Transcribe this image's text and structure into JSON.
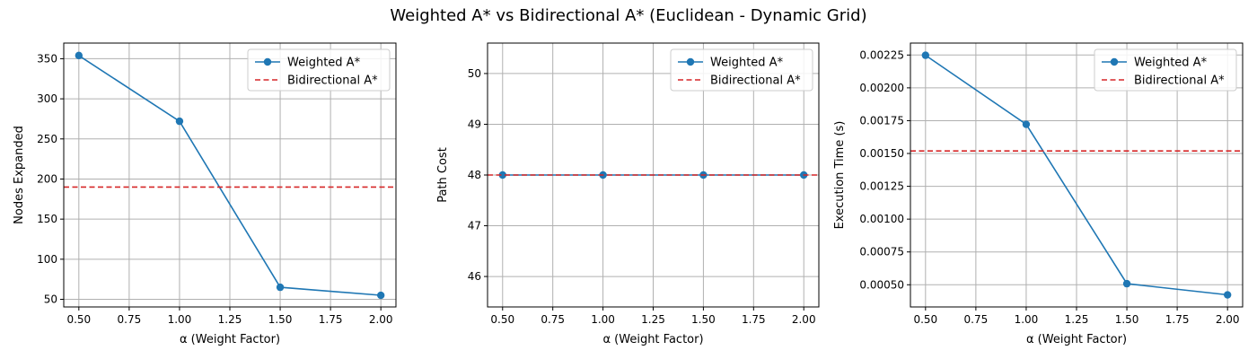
{
  "title": "Weighted A* vs Bidirectional A* (Euclidean - Dynamic Grid)",
  "colors": {
    "weighted": "#1f77b4",
    "bidirectional": "#d62728"
  },
  "chart_data": [
    {
      "type": "line",
      "xlabel": "α (Weight Factor)",
      "ylabel": "Nodes Expanded",
      "x": [
        0.5,
        1.0,
        1.5,
        2.0
      ],
      "xlim": [
        0.425,
        2.075
      ],
      "ylim": [
        40.5,
        369.5
      ],
      "xticks": [
        "0.50",
        "0.75",
        "1.00",
        "1.25",
        "1.50",
        "1.75",
        "2.00"
      ],
      "yticks": [
        "50",
        "100",
        "150",
        "200",
        "250",
        "300",
        "350"
      ],
      "grid": true,
      "legend_position": "top-right",
      "series": [
        {
          "name": "Weighted A*",
          "style": "solid-marker",
          "values": [
            354,
            272,
            65,
            55
          ]
        },
        {
          "name": "Bidirectional A*",
          "style": "dashed-hline",
          "value": 190
        }
      ]
    },
    {
      "type": "line",
      "xlabel": "α (Weight Factor)",
      "ylabel": "Path Cost",
      "x": [
        0.5,
        1.0,
        1.5,
        2.0
      ],
      "xlim": [
        0.425,
        2.075
      ],
      "ylim": [
        45.4,
        50.6
      ],
      "xticks": [
        "0.50",
        "0.75",
        "1.00",
        "1.25",
        "1.50",
        "1.75",
        "2.00"
      ],
      "yticks": [
        "46",
        "47",
        "48",
        "49",
        "50"
      ],
      "grid": true,
      "legend_position": "top-right",
      "series": [
        {
          "name": "Weighted A*",
          "style": "solid-marker",
          "values": [
            48,
            48,
            48,
            48
          ]
        },
        {
          "name": "Bidirectional A*",
          "style": "dashed-hline",
          "value": 48
        }
      ]
    },
    {
      "type": "line",
      "xlabel": "α (Weight Factor)",
      "ylabel": "Execution Time (s)",
      "x": [
        0.5,
        1.0,
        1.5,
        2.0
      ],
      "xlim": [
        0.425,
        2.075
      ],
      "ylim": [
        0.000331,
        0.002341
      ],
      "xticks": [
        "0.50",
        "0.75",
        "1.00",
        "1.25",
        "1.50",
        "1.75",
        "2.00"
      ],
      "yticks": [
        "0.00050",
        "0.00075",
        "0.00100",
        "0.00125",
        "0.00150",
        "0.00175",
        "0.00200",
        "0.00225"
      ],
      "grid": true,
      "legend_position": "top-right",
      "series": [
        {
          "name": "Weighted A*",
          "style": "solid-marker",
          "values": [
            0.002248,
            0.001722,
            0.000508,
            0.000423
          ]
        },
        {
          "name": "Bidirectional A*",
          "style": "dashed-hline",
          "value": 0.001519
        }
      ]
    }
  ]
}
